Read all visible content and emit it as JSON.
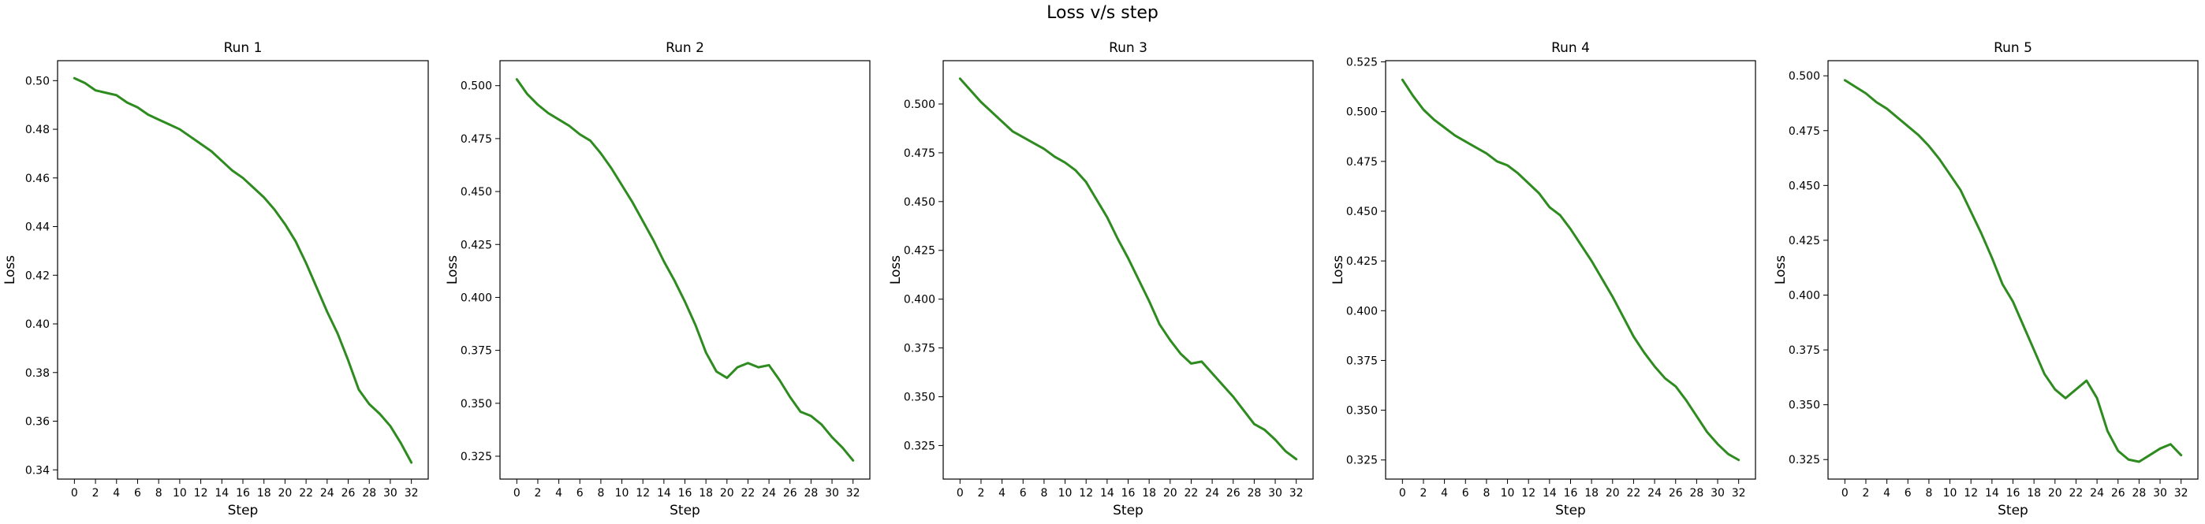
{
  "figure": {
    "suptitle": "Loss v/s step"
  },
  "colors": {
    "line": "#2e8b1f",
    "axes": "#000000",
    "background": "#ffffff"
  },
  "chart_data": [
    {
      "type": "line",
      "title": "Run 1",
      "xlabel": "Step",
      "ylabel": "Loss",
      "x_ticks": [
        0,
        2,
        4,
        6,
        8,
        10,
        12,
        14,
        16,
        18,
        20,
        22,
        24,
        26,
        28,
        30,
        32
      ],
      "y_ticks": [
        0.34,
        0.36,
        0.38,
        0.4,
        0.42,
        0.44,
        0.46,
        0.48,
        0.5
      ],
      "y_tick_labels": [
        "0.34",
        "0.36",
        "0.38",
        "0.40",
        "0.42",
        "0.44",
        "0.46",
        "0.48",
        "0.50"
      ],
      "xlim": [
        -1.6,
        33.6
      ],
      "ylim": [
        0.3362,
        0.5082
      ],
      "grid": false,
      "series": [
        {
          "x": [
            0,
            1,
            2,
            3,
            4,
            5,
            6,
            7,
            8,
            9,
            10,
            11,
            12,
            13,
            14,
            15,
            16,
            17,
            18,
            19,
            20,
            21,
            22,
            23,
            24,
            25,
            26,
            27,
            28,
            29,
            30,
            31,
            32
          ],
          "values": [
            0.501,
            0.499,
            0.496,
            0.495,
            0.494,
            0.491,
            0.489,
            0.486,
            0.484,
            0.482,
            0.48,
            0.477,
            0.474,
            0.471,
            0.467,
            0.463,
            0.46,
            0.456,
            0.452,
            0.447,
            0.441,
            0.434,
            0.425,
            0.415,
            0.405,
            0.396,
            0.385,
            0.373,
            0.367,
            0.363,
            0.358,
            0.351,
            0.343
          ]
        }
      ]
    },
    {
      "type": "line",
      "title": "Run 2",
      "xlabel": "Step",
      "ylabel": "Loss",
      "x_ticks": [
        0,
        2,
        4,
        6,
        8,
        10,
        12,
        14,
        16,
        18,
        20,
        22,
        24,
        26,
        28,
        30,
        32
      ],
      "y_ticks": [
        0.325,
        0.35,
        0.375,
        0.4,
        0.425,
        0.45,
        0.475,
        0.5
      ],
      "y_tick_labels": [
        "0.325",
        "0.350",
        "0.375",
        "0.400",
        "0.425",
        "0.450",
        "0.475",
        "0.500"
      ],
      "xlim": [
        -1.6,
        33.6
      ],
      "ylim": [
        0.3142,
        0.5118
      ],
      "grid": false,
      "series": [
        {
          "x": [
            0,
            1,
            2,
            3,
            4,
            5,
            6,
            7,
            8,
            9,
            10,
            11,
            12,
            13,
            14,
            15,
            16,
            17,
            18,
            19,
            20,
            21,
            22,
            23,
            24,
            25,
            26,
            27,
            28,
            29,
            30,
            31,
            32
          ],
          "values": [
            0.503,
            0.496,
            0.491,
            0.487,
            0.484,
            0.481,
            0.477,
            0.474,
            0.468,
            0.461,
            0.453,
            0.445,
            0.436,
            0.427,
            0.417,
            0.408,
            0.398,
            0.387,
            0.374,
            0.365,
            0.362,
            0.367,
            0.369,
            0.367,
            0.368,
            0.361,
            0.353,
            0.346,
            0.344,
            0.34,
            0.334,
            0.329,
            0.323
          ]
        }
      ]
    },
    {
      "type": "line",
      "title": "Run 3",
      "xlabel": "Step",
      "ylabel": "Loss",
      "x_ticks": [
        0,
        2,
        4,
        6,
        8,
        10,
        12,
        14,
        16,
        18,
        20,
        22,
        24,
        26,
        28,
        30,
        32
      ],
      "y_ticks": [
        0.325,
        0.35,
        0.375,
        0.4,
        0.425,
        0.45,
        0.475,
        0.5
      ],
      "y_tick_labels": [
        "0.325",
        "0.350",
        "0.375",
        "0.400",
        "0.425",
        "0.450",
        "0.475",
        "0.500"
      ],
      "xlim": [
        -1.6,
        33.6
      ],
      "ylim": [
        0.3078,
        0.5222
      ],
      "grid": false,
      "series": [
        {
          "x": [
            0,
            1,
            2,
            3,
            4,
            5,
            6,
            7,
            8,
            9,
            10,
            11,
            12,
            13,
            14,
            15,
            16,
            17,
            18,
            19,
            20,
            21,
            22,
            23,
            24,
            25,
            26,
            27,
            28,
            29,
            30,
            31,
            32
          ],
          "values": [
            0.513,
            0.507,
            0.501,
            0.496,
            0.491,
            0.486,
            0.483,
            0.48,
            0.477,
            0.473,
            0.47,
            0.466,
            0.46,
            0.451,
            0.442,
            0.431,
            0.421,
            0.41,
            0.399,
            0.387,
            0.379,
            0.372,
            0.367,
            0.368,
            0.362,
            0.356,
            0.35,
            0.343,
            0.336,
            0.333,
            0.328,
            0.322,
            0.318
          ]
        }
      ]
    },
    {
      "type": "line",
      "title": "Run 4",
      "xlabel": "Step",
      "ylabel": "Loss",
      "x_ticks": [
        0,
        2,
        4,
        6,
        8,
        10,
        12,
        14,
        16,
        18,
        20,
        22,
        24,
        26,
        28,
        30,
        32
      ],
      "y_ticks": [
        0.325,
        0.35,
        0.375,
        0.4,
        0.425,
        0.45,
        0.475,
        0.5,
        0.525
      ],
      "y_tick_labels": [
        "0.325",
        "0.350",
        "0.375",
        "0.400",
        "0.425",
        "0.450",
        "0.475",
        "0.500",
        "0.525"
      ],
      "xlim": [
        -1.6,
        33.6
      ],
      "ylim": [
        0.3154,
        0.5256
      ],
      "grid": false,
      "series": [
        {
          "x": [
            0,
            1,
            2,
            3,
            4,
            5,
            6,
            7,
            8,
            9,
            10,
            11,
            12,
            13,
            14,
            15,
            16,
            17,
            18,
            19,
            20,
            21,
            22,
            23,
            24,
            25,
            26,
            27,
            28,
            29,
            30,
            31,
            32
          ],
          "values": [
            0.516,
            0.508,
            0.501,
            0.496,
            0.492,
            0.488,
            0.485,
            0.482,
            0.479,
            0.475,
            0.473,
            0.469,
            0.464,
            0.459,
            0.452,
            0.448,
            0.441,
            0.433,
            0.425,
            0.416,
            0.407,
            0.397,
            0.387,
            0.379,
            0.372,
            0.366,
            0.362,
            0.355,
            0.347,
            0.339,
            0.333,
            0.328,
            0.325
          ]
        }
      ]
    },
    {
      "type": "line",
      "title": "Run 5",
      "xlabel": "Step",
      "ylabel": "Loss",
      "x_ticks": [
        0,
        2,
        4,
        6,
        8,
        10,
        12,
        14,
        16,
        18,
        20,
        22,
        24,
        26,
        28,
        30,
        32
      ],
      "y_ticks": [
        0.325,
        0.35,
        0.375,
        0.4,
        0.425,
        0.45,
        0.475,
        0.5
      ],
      "y_tick_labels": [
        "0.325",
        "0.350",
        "0.375",
        "0.400",
        "0.425",
        "0.450",
        "0.475",
        "0.500"
      ],
      "xlim": [
        -1.6,
        33.6
      ],
      "ylim": [
        0.3161,
        0.5069
      ],
      "grid": false,
      "series": [
        {
          "x": [
            0,
            1,
            2,
            3,
            4,
            5,
            6,
            7,
            8,
            9,
            10,
            11,
            12,
            13,
            14,
            15,
            16,
            17,
            18,
            19,
            20,
            21,
            22,
            23,
            24,
            25,
            26,
            27,
            28,
            29,
            30,
            31,
            32
          ],
          "values": [
            0.498,
            0.495,
            0.492,
            0.488,
            0.485,
            0.481,
            0.477,
            0.473,
            0.468,
            0.462,
            0.455,
            0.448,
            0.438,
            0.428,
            0.417,
            0.405,
            0.397,
            0.386,
            0.375,
            0.364,
            0.357,
            0.353,
            0.357,
            0.361,
            0.353,
            0.338,
            0.329,
            0.325,
            0.324,
            0.327,
            0.33,
            0.332,
            0.327
          ]
        }
      ]
    }
  ]
}
